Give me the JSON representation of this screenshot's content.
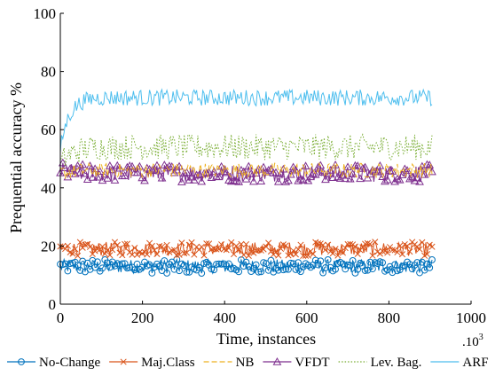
{
  "chart_data": {
    "type": "line",
    "xlabel": "Time, instances",
    "ylabel": "Prequential accuracy %",
    "x_scale_label": ".10",
    "x_scale_exponent": "3",
    "xlim": [
      0,
      1000
    ],
    "ylim": [
      0,
      100
    ],
    "xticks": [
      0,
      200,
      400,
      600,
      800,
      1000
    ],
    "yticks": [
      0,
      20,
      40,
      60,
      80,
      100
    ],
    "grid": false,
    "legend_position": "bottom",
    "x_range": [
      0,
      905
    ],
    "series": [
      {
        "name": "No-Change",
        "color": "#0072BD",
        "marker": "circle",
        "dash": "solid",
        "mean": 13,
        "noise": 1.2,
        "start": 13,
        "rise": 1
      },
      {
        "name": "Maj.Class",
        "color": "#D95319",
        "marker": "x",
        "dash": "solid",
        "mean": 19,
        "noise": 1.2,
        "start": 19,
        "rise": 1
      },
      {
        "name": "NB",
        "color": "#EDB120",
        "marker": "none",
        "dash": "dashed",
        "mean": 46,
        "noise": 1.3,
        "start": 45,
        "rise": 1
      },
      {
        "name": "VFDT",
        "color": "#7E2F8E",
        "marker": "triangle",
        "dash": "solid",
        "mean": 45,
        "noise": 1.5,
        "start": 46,
        "rise": 1
      },
      {
        "name": "Lev. Bag.",
        "color": "#77AC30",
        "marker": "none",
        "dash": "dotted",
        "mean": 54,
        "noise": 2.2,
        "start": 50,
        "rise": 10
      },
      {
        "name": "ARF",
        "color": "#4DBEEE",
        "marker": "none",
        "dash": "solid",
        "mean": 71,
        "noise": 1.4,
        "start": 55,
        "rise": 40
      }
    ]
  }
}
